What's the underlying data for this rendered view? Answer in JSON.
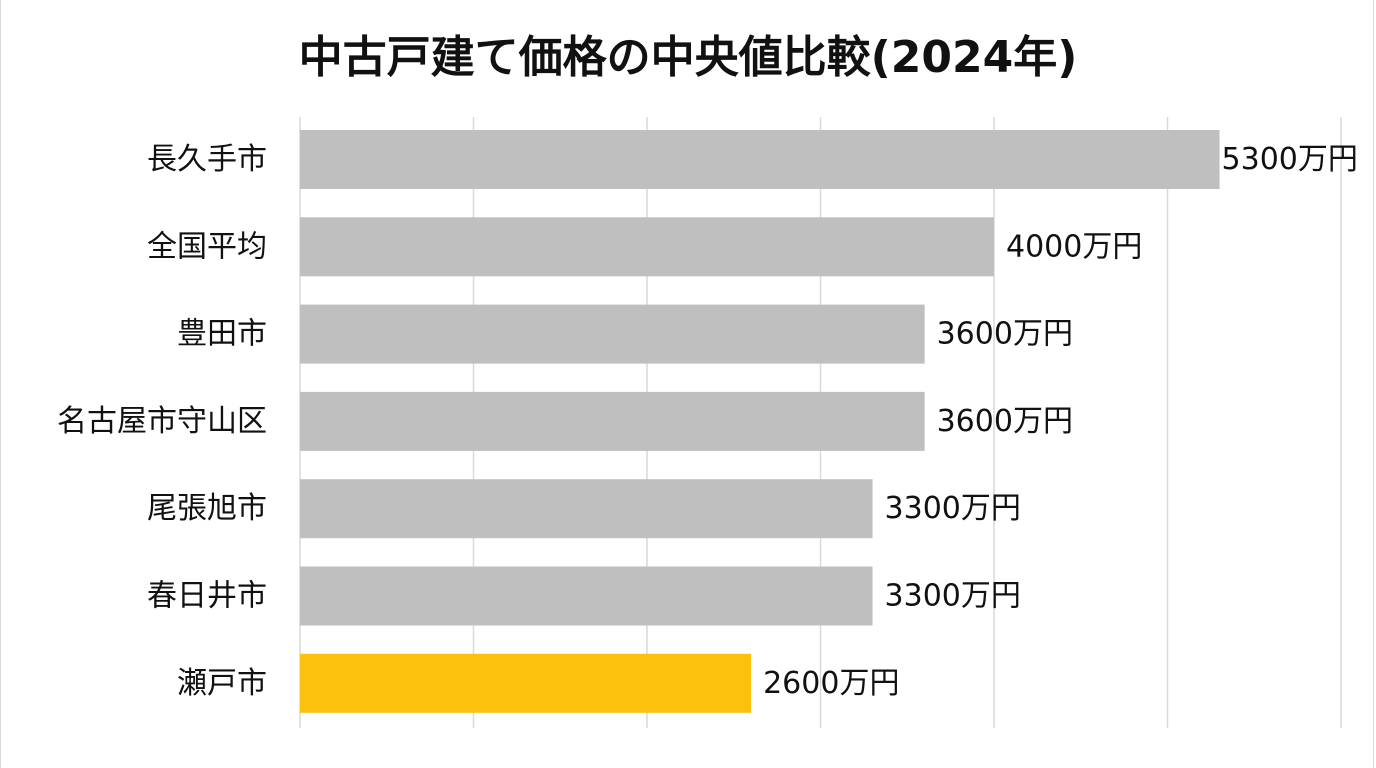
{
  "chart_data": {
    "type": "bar",
    "orientation": "horizontal",
    "title": "中古戸建て価格の中央値比較(2024年)",
    "categories": [
      "長久手市",
      "全国平均",
      "豊田市",
      "名古屋市守山区",
      "尾張旭市",
      "春日井市",
      "瀬戸市"
    ],
    "values": [
      5300,
      4000,
      3600,
      3600,
      3300,
      3300,
      2600
    ],
    "value_labels": [
      "5300万円",
      "4000万円",
      "3600万円",
      "3600万円",
      "3300万円",
      "3300万円",
      "2600万円"
    ],
    "xlim": [
      0,
      6000
    ],
    "gridlines": true,
    "tick_labels_shown": false,
    "legend": "none",
    "colors": {
      "default_bar": "#bfbfbf",
      "highlight_bar": "#fbc10d",
      "gridline": "#d9d9d9",
      "text": "#111111"
    },
    "highlight_index": 6
  }
}
